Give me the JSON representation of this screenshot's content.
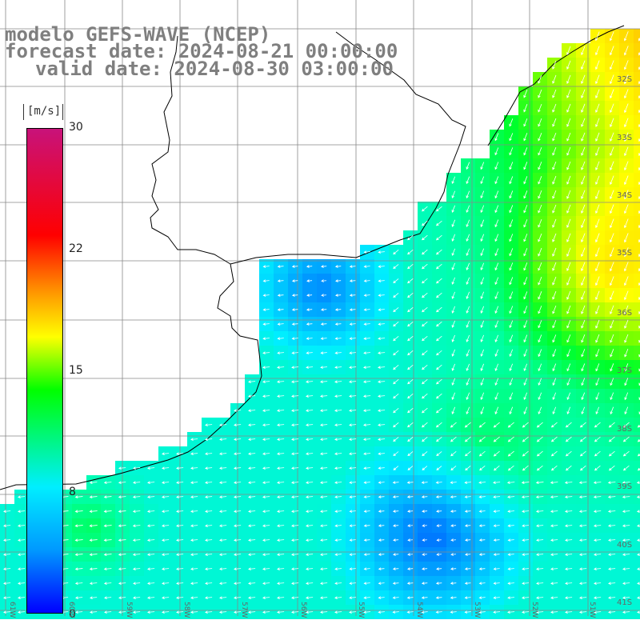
{
  "title": {
    "line1": "modelo GEFS-WAVE (NCEP)",
    "line2": "forecast date: 2024-08-21 00:00:00",
    "line3": "valid date: 2024-08-30 03:00:00"
  },
  "colorbar": {
    "unit": "[m/s]",
    "ticks": [
      "30",
      "22",
      "15",
      "8",
      "0"
    ],
    "tick_values": [
      30,
      22,
      15,
      8,
      0
    ],
    "colors": [
      "#0000ff",
      "#0099ff",
      "#00eeff",
      "#00ff00",
      "#ffff00",
      "#ff9900",
      "#ff0000",
      "#c8127a"
    ]
  },
  "map": {
    "lat_labels": [
      "32S",
      "33S",
      "34S",
      "35S",
      "36S",
      "37S",
      "38S",
      "39S",
      "40S",
      "41S"
    ],
    "lon_labels": [
      "61W",
      "60W",
      "59W",
      "58W",
      "57W",
      "56W",
      "55W",
      "54W",
      "53W",
      "52W",
      "51W"
    ],
    "land_color": "#ffffff",
    "grid_color": "#888888",
    "arrow_color": "#ffffff",
    "coast_color": "#000000"
  }
}
